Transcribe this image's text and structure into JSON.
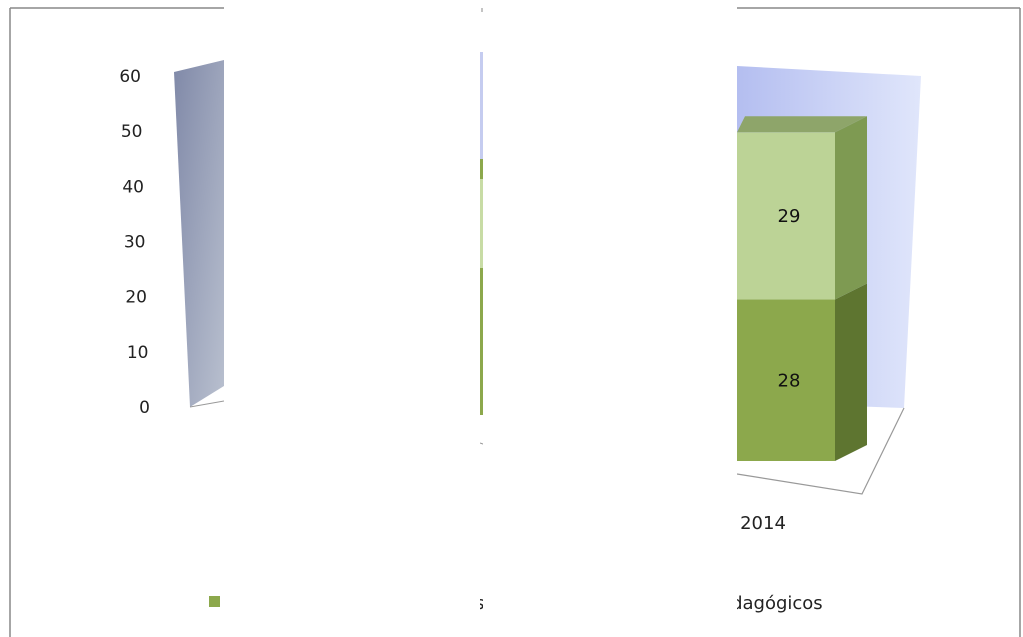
{
  "chart_data": {
    "type": "bar",
    "stacked": true,
    "three_d": true,
    "categories": [
      "",
      "",
      "2014"
    ],
    "series": [
      {
        "name": "",
        "values": [
          null,
          null,
          28
        ],
        "color": "#8ca84c"
      },
      {
        "name": "",
        "values": [
          null,
          null,
          29
        ],
        "color": "#bcd396"
      }
    ],
    "ylim": [
      0,
      60
    ],
    "yticks": [
      "0",
      "10",
      "20",
      "30",
      "40",
      "50",
      "60"
    ],
    "legend": {
      "position": "bottom",
      "fragments": [
        "s",
        "edagógicos"
      ]
    },
    "colors": {
      "back_wall": "#c9d2f3",
      "side_wall": "#9aa1b8",
      "bar_dark": "#8ca84c",
      "bar_light": "#bcd396"
    }
  }
}
